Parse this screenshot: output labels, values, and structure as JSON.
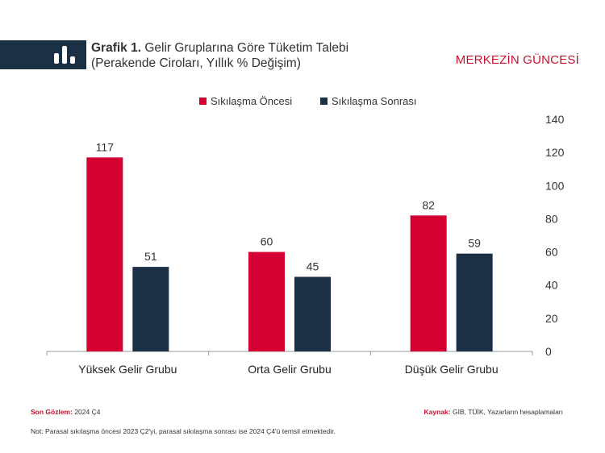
{
  "header": {
    "title_bold": "Grafik 1.",
    "title_rest": "Gelir Gruplarına Göre Tüketim Talebi",
    "subtitle": "(Perakende Ciroları, Yıllık % Değişim)",
    "brand": "MERKEZİN GÜNCESİ",
    "icon": "bar-chart-icon"
  },
  "footer": {
    "last_obs_label": "Son Gözlem:",
    "last_obs_value": "2024 Ç4",
    "source_label": "Kaynak:",
    "source_value": "GİB, TÜİK, Yazarların hesaplamaları",
    "note": "Not: Parasal sıkılaşma öncesi 2023 Ç2'yi, parasal sıkılaşma sonrası ise 2024 Ç4'ü temsil etmektedir."
  },
  "chart_data": {
    "type": "bar",
    "categories": [
      "Yüksek Gelir Grubu",
      "Orta Gelir Grubu",
      "Düşük Gelir Grubu"
    ],
    "series": [
      {
        "name": "Sıkılaşma Öncesi",
        "values": [
          117,
          60,
          82
        ],
        "color": "#d50032"
      },
      {
        "name": "Sıkılaşma Sonrası",
        "values": [
          51,
          45,
          59
        ],
        "color": "#1c3045"
      }
    ],
    "ylim": [
      0,
      140
    ],
    "yticks": [
      0,
      20,
      40,
      60,
      80,
      100,
      120,
      140
    ],
    "yaxis_side": "right",
    "legend": "top-center",
    "grid": false,
    "data_labels": true
  }
}
